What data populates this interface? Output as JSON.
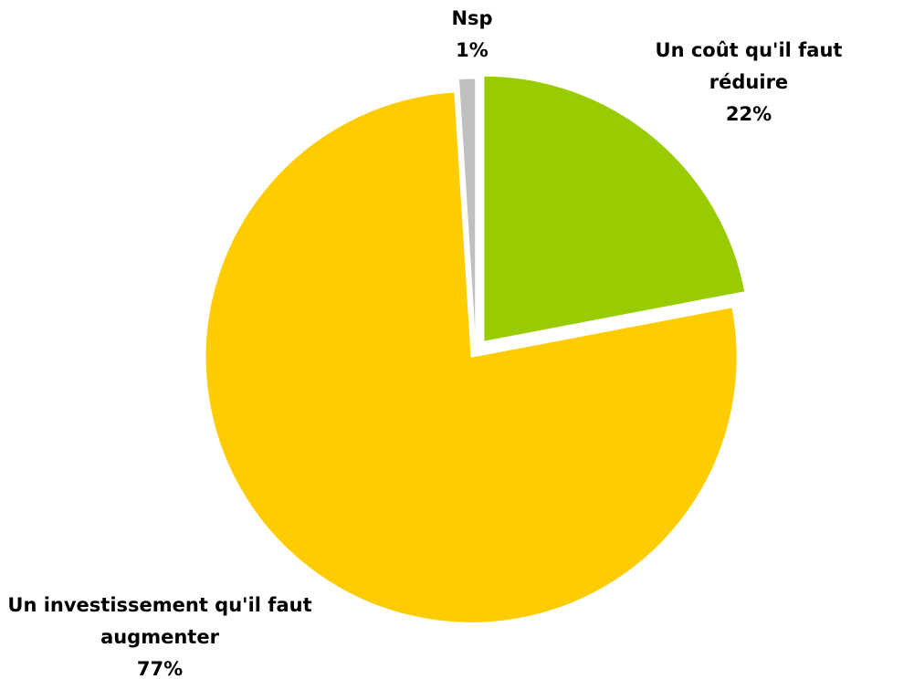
{
  "chart_data": {
    "type": "pie",
    "categories": [
      "Un coût qu'il faut réduire",
      "Un investissement qu'il faut augmenter",
      "Nsp"
    ],
    "values": [
      22,
      77,
      1
    ],
    "value_labels": [
      "22%",
      "77%",
      "1%"
    ],
    "colors": [
      "#99cc00",
      "#ffcc00",
      "#c0c0c0"
    ]
  }
}
